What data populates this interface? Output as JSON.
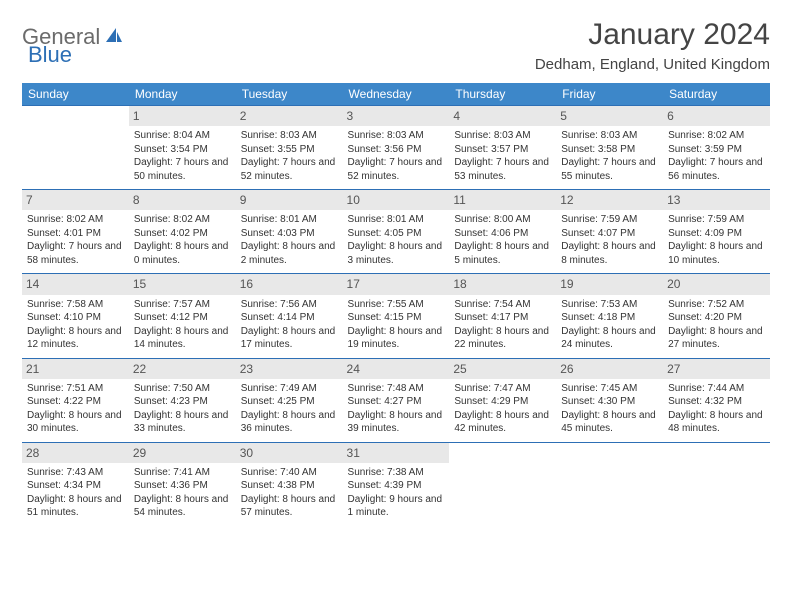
{
  "brand": {
    "name1": "General",
    "name2": "Blue"
  },
  "title": "January 2024",
  "location": "Dedham, England, United Kingdom",
  "colors": {
    "header_bg": "#3d87c9",
    "row_border": "#2d6fb5",
    "daynum_bg": "#e8e8e8",
    "text": "#333333"
  },
  "weekdays": [
    "Sunday",
    "Monday",
    "Tuesday",
    "Wednesday",
    "Thursday",
    "Friday",
    "Saturday"
  ],
  "weeks": [
    [
      {
        "n": "",
        "sr": "",
        "ss": "",
        "dl": ""
      },
      {
        "n": "1",
        "sr": "Sunrise: 8:04 AM",
        "ss": "Sunset: 3:54 PM",
        "dl": "Daylight: 7 hours and 50 minutes."
      },
      {
        "n": "2",
        "sr": "Sunrise: 8:03 AM",
        "ss": "Sunset: 3:55 PM",
        "dl": "Daylight: 7 hours and 52 minutes."
      },
      {
        "n": "3",
        "sr": "Sunrise: 8:03 AM",
        "ss": "Sunset: 3:56 PM",
        "dl": "Daylight: 7 hours and 52 minutes."
      },
      {
        "n": "4",
        "sr": "Sunrise: 8:03 AM",
        "ss": "Sunset: 3:57 PM",
        "dl": "Daylight: 7 hours and 53 minutes."
      },
      {
        "n": "5",
        "sr": "Sunrise: 8:03 AM",
        "ss": "Sunset: 3:58 PM",
        "dl": "Daylight: 7 hours and 55 minutes."
      },
      {
        "n": "6",
        "sr": "Sunrise: 8:02 AM",
        "ss": "Sunset: 3:59 PM",
        "dl": "Daylight: 7 hours and 56 minutes."
      }
    ],
    [
      {
        "n": "7",
        "sr": "Sunrise: 8:02 AM",
        "ss": "Sunset: 4:01 PM",
        "dl": "Daylight: 7 hours and 58 minutes."
      },
      {
        "n": "8",
        "sr": "Sunrise: 8:02 AM",
        "ss": "Sunset: 4:02 PM",
        "dl": "Daylight: 8 hours and 0 minutes."
      },
      {
        "n": "9",
        "sr": "Sunrise: 8:01 AM",
        "ss": "Sunset: 4:03 PM",
        "dl": "Daylight: 8 hours and 2 minutes."
      },
      {
        "n": "10",
        "sr": "Sunrise: 8:01 AM",
        "ss": "Sunset: 4:05 PM",
        "dl": "Daylight: 8 hours and 3 minutes."
      },
      {
        "n": "11",
        "sr": "Sunrise: 8:00 AM",
        "ss": "Sunset: 4:06 PM",
        "dl": "Daylight: 8 hours and 5 minutes."
      },
      {
        "n": "12",
        "sr": "Sunrise: 7:59 AM",
        "ss": "Sunset: 4:07 PM",
        "dl": "Daylight: 8 hours and 8 minutes."
      },
      {
        "n": "13",
        "sr": "Sunrise: 7:59 AM",
        "ss": "Sunset: 4:09 PM",
        "dl": "Daylight: 8 hours and 10 minutes."
      }
    ],
    [
      {
        "n": "14",
        "sr": "Sunrise: 7:58 AM",
        "ss": "Sunset: 4:10 PM",
        "dl": "Daylight: 8 hours and 12 minutes."
      },
      {
        "n": "15",
        "sr": "Sunrise: 7:57 AM",
        "ss": "Sunset: 4:12 PM",
        "dl": "Daylight: 8 hours and 14 minutes."
      },
      {
        "n": "16",
        "sr": "Sunrise: 7:56 AM",
        "ss": "Sunset: 4:14 PM",
        "dl": "Daylight: 8 hours and 17 minutes."
      },
      {
        "n": "17",
        "sr": "Sunrise: 7:55 AM",
        "ss": "Sunset: 4:15 PM",
        "dl": "Daylight: 8 hours and 19 minutes."
      },
      {
        "n": "18",
        "sr": "Sunrise: 7:54 AM",
        "ss": "Sunset: 4:17 PM",
        "dl": "Daylight: 8 hours and 22 minutes."
      },
      {
        "n": "19",
        "sr": "Sunrise: 7:53 AM",
        "ss": "Sunset: 4:18 PM",
        "dl": "Daylight: 8 hours and 24 minutes."
      },
      {
        "n": "20",
        "sr": "Sunrise: 7:52 AM",
        "ss": "Sunset: 4:20 PM",
        "dl": "Daylight: 8 hours and 27 minutes."
      }
    ],
    [
      {
        "n": "21",
        "sr": "Sunrise: 7:51 AM",
        "ss": "Sunset: 4:22 PM",
        "dl": "Daylight: 8 hours and 30 minutes."
      },
      {
        "n": "22",
        "sr": "Sunrise: 7:50 AM",
        "ss": "Sunset: 4:23 PM",
        "dl": "Daylight: 8 hours and 33 minutes."
      },
      {
        "n": "23",
        "sr": "Sunrise: 7:49 AM",
        "ss": "Sunset: 4:25 PM",
        "dl": "Daylight: 8 hours and 36 minutes."
      },
      {
        "n": "24",
        "sr": "Sunrise: 7:48 AM",
        "ss": "Sunset: 4:27 PM",
        "dl": "Daylight: 8 hours and 39 minutes."
      },
      {
        "n": "25",
        "sr": "Sunrise: 7:47 AM",
        "ss": "Sunset: 4:29 PM",
        "dl": "Daylight: 8 hours and 42 minutes."
      },
      {
        "n": "26",
        "sr": "Sunrise: 7:45 AM",
        "ss": "Sunset: 4:30 PM",
        "dl": "Daylight: 8 hours and 45 minutes."
      },
      {
        "n": "27",
        "sr": "Sunrise: 7:44 AM",
        "ss": "Sunset: 4:32 PM",
        "dl": "Daylight: 8 hours and 48 minutes."
      }
    ],
    [
      {
        "n": "28",
        "sr": "Sunrise: 7:43 AM",
        "ss": "Sunset: 4:34 PM",
        "dl": "Daylight: 8 hours and 51 minutes."
      },
      {
        "n": "29",
        "sr": "Sunrise: 7:41 AM",
        "ss": "Sunset: 4:36 PM",
        "dl": "Daylight: 8 hours and 54 minutes."
      },
      {
        "n": "30",
        "sr": "Sunrise: 7:40 AM",
        "ss": "Sunset: 4:38 PM",
        "dl": "Daylight: 8 hours and 57 minutes."
      },
      {
        "n": "31",
        "sr": "Sunrise: 7:38 AM",
        "ss": "Sunset: 4:39 PM",
        "dl": "Daylight: 9 hours and 1 minute."
      },
      {
        "n": "",
        "sr": "",
        "ss": "",
        "dl": ""
      },
      {
        "n": "",
        "sr": "",
        "ss": "",
        "dl": ""
      },
      {
        "n": "",
        "sr": "",
        "ss": "",
        "dl": ""
      }
    ]
  ]
}
